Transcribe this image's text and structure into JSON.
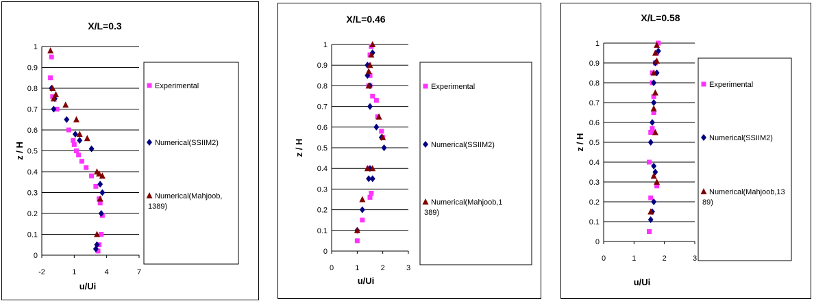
{
  "chart_data": [
    {
      "type": "scatter",
      "title": "X/L=0.3",
      "xlabel": "u/Ui",
      "ylabel": "z / H",
      "xlim": [
        -2,
        7
      ],
      "ylim": [
        0,
        1
      ],
      "xticks": [
        "-2",
        "1",
        "4",
        "7"
      ],
      "yticks": [
        "0",
        "0.1",
        "0.2",
        "0.3",
        "0.4",
        "0.5",
        "0.6",
        "0.7",
        "0.8",
        "0.9",
        "1"
      ],
      "grid": "horizontal",
      "legend_position": "right",
      "series": [
        {
          "name": "Experimental",
          "marker": "square",
          "color": "#ff33ff",
          "x": [
            -1.1,
            -1.2,
            -1.0,
            -0.6,
            0.5,
            0.9,
            1.0,
            1.2,
            1.4,
            1.7,
            2.1,
            2.6,
            3.0,
            3.3,
            3.4,
            3.6,
            3.5,
            3.3,
            3.2
          ],
          "y": [
            0.95,
            0.85,
            0.76,
            0.7,
            0.6,
            0.55,
            0.53,
            0.5,
            0.48,
            0.45,
            0.42,
            0.38,
            0.33,
            0.27,
            0.25,
            0.19,
            0.1,
            0.05,
            0.02
          ]
        },
        {
          "name": "Numerical(SSIIM2)",
          "marker": "diamond",
          "color": "#000080",
          "x": [
            -1.1,
            -0.8,
            -0.9,
            0.3,
            1.1,
            1.5,
            2.6,
            3.6,
            3.4,
            3.5,
            3.1,
            3.0
          ],
          "y": [
            0.8,
            0.75,
            0.7,
            0.65,
            0.58,
            0.55,
            0.51,
            0.3,
            0.34,
            0.2,
            0.05,
            0.03
          ]
        },
        {
          "name": "Numerical(Mahjoob, 1389)",
          "marker": "triangle",
          "color": "#800000",
          "x": [
            -1.2,
            -1.0,
            -0.7,
            -0.9,
            0.2,
            1.2,
            1.5,
            2.2,
            3.1,
            3.3,
            3.6,
            3.4,
            3.1
          ],
          "y": [
            0.98,
            0.8,
            0.77,
            0.75,
            0.72,
            0.65,
            0.58,
            0.56,
            0.4,
            0.39,
            0.38,
            0.27,
            0.1
          ]
        }
      ]
    },
    {
      "type": "scatter",
      "title": "X/L=0.46",
      "xlabel": "u/Ui",
      "ylabel": "z / H",
      "xlim": [
        0,
        3
      ],
      "ylim": [
        0,
        1
      ],
      "xticks": [
        "0",
        "1",
        "2",
        "3"
      ],
      "yticks": [
        "0",
        "0.1",
        "0.2",
        "0.3",
        "0.4",
        "0.5",
        "0.6",
        "0.7",
        "0.8",
        "0.9",
        "1"
      ],
      "grid": "horizontal",
      "legend_position": "right",
      "series": [
        {
          "name": "Experimental",
          "marker": "square",
          "color": "#ff33ff",
          "x": [
            1.55,
            1.5,
            1.45,
            1.5,
            1.45,
            1.5,
            1.6,
            1.75,
            1.8,
            1.95,
            2.0,
            1.45,
            1.55,
            1.5,
            1.2,
            1.0
          ],
          "y": [
            0.99,
            0.95,
            0.9,
            0.85,
            0.8,
            0.8,
            0.75,
            0.73,
            0.65,
            0.58,
            0.55,
            0.4,
            0.28,
            0.26,
            0.15,
            0.05
          ]
        },
        {
          "name": "Numerical(SSIIM2)",
          "marker": "diamond",
          "color": "#000080",
          "x": [
            1.6,
            1.4,
            1.4,
            1.5,
            1.5,
            1.75,
            1.95,
            2.05,
            1.5,
            1.45,
            1.6,
            1.2,
            1.0
          ],
          "y": [
            0.96,
            0.9,
            0.85,
            0.8,
            0.7,
            0.6,
            0.55,
            0.5,
            0.4,
            0.35,
            0.35,
            0.2,
            0.1
          ]
        },
        {
          "name": "Numerical(Mahjoob,1 389)",
          "marker": "triangle",
          "color": "#800000",
          "x": [
            1.6,
            1.55,
            1.5,
            1.45,
            1.45,
            1.85,
            2.0,
            1.4,
            1.6,
            1.2,
            1.0
          ],
          "y": [
            1.0,
            0.95,
            0.9,
            0.87,
            0.8,
            0.65,
            0.55,
            0.4,
            0.4,
            0.25,
            0.1
          ]
        }
      ]
    },
    {
      "type": "scatter",
      "title": "X/L=0.58",
      "xlabel": "u/Ui",
      "ylabel": "z / H",
      "xlim": [
        0,
        3
      ],
      "ylim": [
        0,
        1
      ],
      "xticks": [
        "0",
        "1",
        "2",
        "3"
      ],
      "yticks": [
        "0",
        "0.1",
        "0.2",
        "0.3",
        "0.4",
        "0.5",
        "0.6",
        "0.7",
        "0.8",
        "0.9",
        "1"
      ],
      "grid": "horizontal",
      "legend_position": "right",
      "series": [
        {
          "name": "Experimental",
          "marker": "square",
          "color": "#ff33ff",
          "x": [
            1.8,
            1.75,
            1.7,
            1.6,
            1.6,
            1.65,
            1.65,
            1.6,
            1.55,
            1.6,
            1.5,
            1.75,
            1.55,
            1.5
          ],
          "y": [
            1.0,
            0.95,
            0.9,
            0.85,
            0.8,
            0.73,
            0.65,
            0.57,
            0.55,
            0.56,
            0.4,
            0.28,
            0.22,
            0.05
          ]
        },
        {
          "name": "Numerical(SSIIM2)",
          "marker": "diamond",
          "color": "#000080",
          "x": [
            1.8,
            1.7,
            1.75,
            1.65,
            1.65,
            1.6,
            1.55,
            1.65,
            1.7,
            1.65,
            1.6,
            1.55
          ],
          "y": [
            0.96,
            0.9,
            0.85,
            0.8,
            0.7,
            0.6,
            0.5,
            0.38,
            0.35,
            0.2,
            0.15,
            0.11
          ]
        },
        {
          "name": "Numerical(Mahjoob,13 89)",
          "marker": "triangle",
          "color": "#800000",
          "x": [
            1.75,
            1.7,
            1.75,
            1.65,
            1.7,
            1.65,
            1.7,
            1.65,
            1.75,
            1.55
          ],
          "y": [
            0.99,
            0.95,
            0.91,
            0.85,
            0.75,
            0.67,
            0.55,
            0.33,
            0.3,
            0.15
          ]
        }
      ]
    }
  ]
}
